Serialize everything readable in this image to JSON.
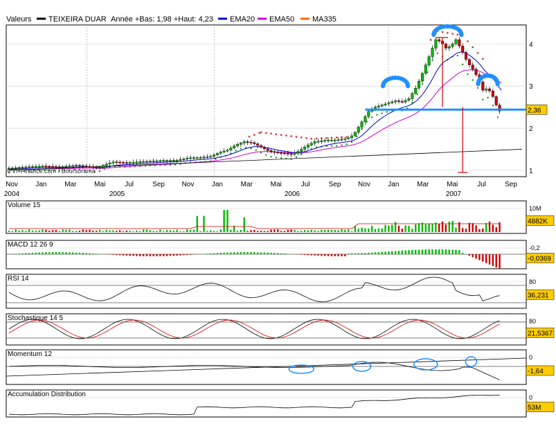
{
  "header": {
    "label": "Valeurs",
    "symbol": "TEIXEIRA DUAR",
    "stats": "Année +Bas: 1,98 +Haut: 4,23",
    "legend": [
      {
        "name": "EMA20",
        "color": "#0000cc"
      },
      {
        "name": "EMA50",
        "color": "#cc00cc"
      },
      {
        "name": "MA335",
        "color": "#ff6600"
      }
    ]
  },
  "credit": "© IT-Finance.com / Boursorama",
  "colors": {
    "up": "#00bb00",
    "down": "#cc0000",
    "volume_avg": "#cc0000",
    "macd_pos": "#00bb00",
    "macd_neg": "#cc0000",
    "rsi_line": "#000000",
    "stoch_k": "#000000",
    "stoch_d": "#cc0000",
    "support_line": "#1e90ff",
    "annotation": "#1e90ff",
    "highlight": "#ffcc00"
  },
  "chart_data": [
    {
      "type": "candlestick",
      "panel": "price",
      "ylim": [
        0.85,
        4.45
      ],
      "y_ticks": [
        1,
        2,
        3,
        4
      ],
      "x_month_labels": [
        "Nov",
        "Jan",
        "Mar",
        "Mai",
        "Jul",
        "Sep",
        "Nov",
        "Jan",
        "Mar",
        "Mai",
        "Jul",
        "Sep",
        "Nov",
        "Jan",
        "Mar",
        "Mai",
        "Jul",
        "Sep"
      ],
      "x_year_labels": [
        "2004",
        "2005",
        "2006",
        "2007"
      ],
      "last_value_label": "2,36",
      "price_path": [
        [
          0,
          1.05
        ],
        [
          10,
          1.08
        ],
        [
          20,
          1.1
        ],
        [
          30,
          1.08
        ],
        [
          40,
          1.12
        ],
        [
          45,
          1.1
        ],
        [
          50,
          1.08
        ],
        [
          53,
          1.05
        ],
        [
          56,
          1.12
        ],
        [
          62,
          1.2
        ],
        [
          70,
          1.18
        ],
        [
          80,
          1.21
        ],
        [
          90,
          1.23
        ],
        [
          100,
          1.24
        ],
        [
          105,
          1.28
        ],
        [
          108,
          1.3
        ],
        [
          112,
          1.3
        ],
        [
          120,
          1.33
        ],
        [
          125,
          1.42
        ],
        [
          130,
          1.48
        ],
        [
          135,
          1.6
        ],
        [
          140,
          1.68
        ],
        [
          145,
          1.65
        ],
        [
          150,
          1.55
        ],
        [
          155,
          1.45
        ],
        [
          160,
          1.42
        ],
        [
          165,
          1.4
        ],
        [
          168,
          1.38
        ],
        [
          172,
          1.45
        ],
        [
          178,
          1.6
        ],
        [
          182,
          1.68
        ],
        [
          186,
          1.7
        ],
        [
          190,
          1.72
        ],
        [
          195,
          1.72
        ],
        [
          200,
          1.75
        ],
        [
          203,
          1.78
        ],
        [
          206,
          1.9
        ],
        [
          210,
          2.15
        ],
        [
          214,
          2.4
        ],
        [
          218,
          2.5
        ],
        [
          222,
          2.55
        ],
        [
          226,
          2.6
        ],
        [
          230,
          2.65
        ],
        [
          234,
          2.62
        ],
        [
          238,
          2.7
        ],
        [
          242,
          2.95
        ],
        [
          245,
          3.2
        ],
        [
          248,
          3.5
        ],
        [
          251,
          3.8
        ],
        [
          254,
          4.1
        ],
        [
          257,
          4.05
        ],
        [
          260,
          3.9
        ],
        [
          263,
          3.95
        ],
        [
          266,
          4.1
        ],
        [
          270,
          3.8
        ],
        [
          273,
          3.55
        ],
        [
          276,
          3.4
        ],
        [
          279,
          3.2
        ],
        [
          282,
          2.9
        ],
        [
          285,
          2.95
        ],
        [
          288,
          2.75
        ],
        [
          291,
          2.45
        ],
        [
          293,
          2.36
        ]
      ],
      "ema20_marker_label": "EMA20",
      "support_level": 2.44,
      "trendline": [
        [
          0,
          1.0
        ],
        [
          293,
          1.5
        ]
      ],
      "ma335_dotted": [
        [
          0,
          1.1
        ],
        [
          40,
          1.15
        ],
        [
          110,
          1.32
        ],
        [
          150,
          1.9
        ],
        [
          180,
          1.75
        ],
        [
          206,
          1.8
        ],
        [
          255,
          4.3
        ],
        [
          270,
          4.2
        ],
        [
          283,
          3.6
        ]
      ],
      "projection_vertical_top": [
        258,
        4.15
      ],
      "projection_vertical_bottom": [
        258,
        2.5
      ],
      "projection_drop_top": [
        270,
        2.5
      ],
      "projection_drop_bottom": [
        270,
        0.95
      ]
    },
    {
      "type": "bar",
      "panel": "Volume 15",
      "title": "Volume 15",
      "y_tick_label": "10M",
      "last_value_label": "4882K"
    },
    {
      "type": "bar",
      "panel": "MACD 12 26 9",
      "title": "MACD 12 26 9",
      "y_tick_label": "-0,2",
      "last_value_label": "-0,0369"
    },
    {
      "type": "line",
      "panel": "RSI 14",
      "title": "RSI 14",
      "y_tick_label": "80",
      "last_value_label": "36,231"
    },
    {
      "type": "line",
      "panel": "Stochastique 14 5",
      "title": "Stochastique 14 5",
      "y_tick_label": "80",
      "last_value_label": "21,5367"
    },
    {
      "type": "line",
      "panel": "Momentum 12",
      "title": "Momentum 12",
      "y_tick_label": "0",
      "last_value_label": "-1,64"
    },
    {
      "type": "line",
      "panel": "Accumulation Distribution",
      "title": "Accumulation Distribution",
      "y_tick_label": "0",
      "last_value_label": "53M"
    }
  ]
}
